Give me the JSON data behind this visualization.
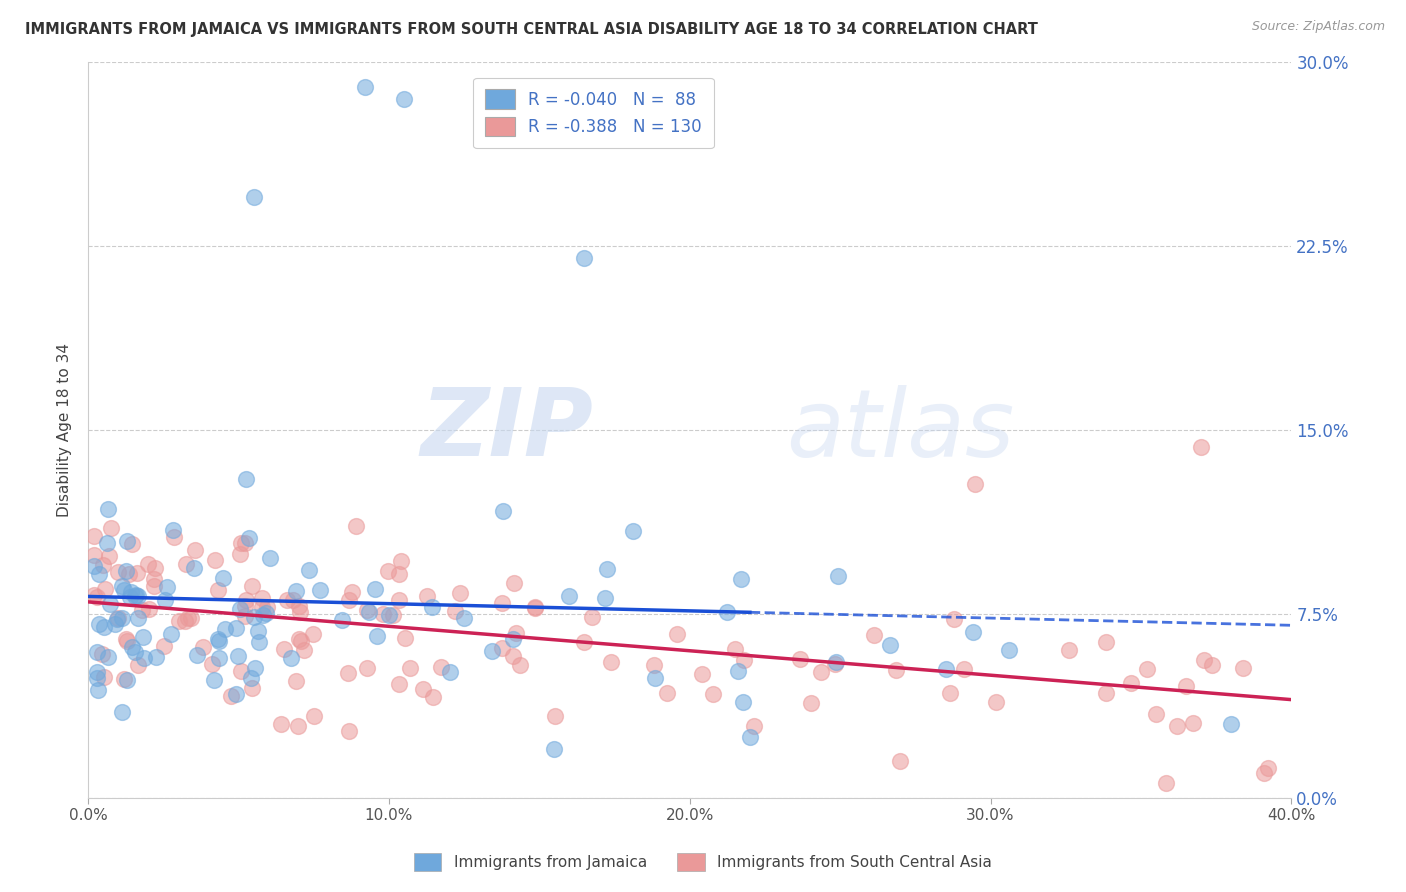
{
  "title": "IMMIGRANTS FROM JAMAICA VS IMMIGRANTS FROM SOUTH CENTRAL ASIA DISABILITY AGE 18 TO 34 CORRELATION CHART",
  "source": "Source: ZipAtlas.com",
  "ylabel": "Disability Age 18 to 34",
  "xlabel_ticks": [
    "0.0%",
    "10.0%",
    "20.0%",
    "30.0%",
    "40.0%"
  ],
  "xlabel_vals": [
    0.0,
    0.1,
    0.2,
    0.3,
    0.4
  ],
  "ytick_labels": [
    "0.0%",
    "7.5%",
    "15.0%",
    "22.5%",
    "30.0%"
  ],
  "ytick_vals": [
    0.0,
    0.075,
    0.15,
    0.225,
    0.3
  ],
  "xlim": [
    0.0,
    0.4
  ],
  "ylim": [
    0.0,
    0.3
  ],
  "blue_color": "#6fa8dc",
  "pink_color": "#ea9999",
  "blue_line_color": "#1a4fd6",
  "pink_line_color": "#cc2255",
  "blue_R": -0.04,
  "blue_N": 88,
  "pink_R": -0.388,
  "pink_N": 130,
  "blue_label": "Immigrants from Jamaica",
  "pink_label": "Immigrants from South Central Asia",
  "watermark_zip": "ZIP",
  "watermark_atlas": "atlas",
  "grid_color": "#cccccc"
}
